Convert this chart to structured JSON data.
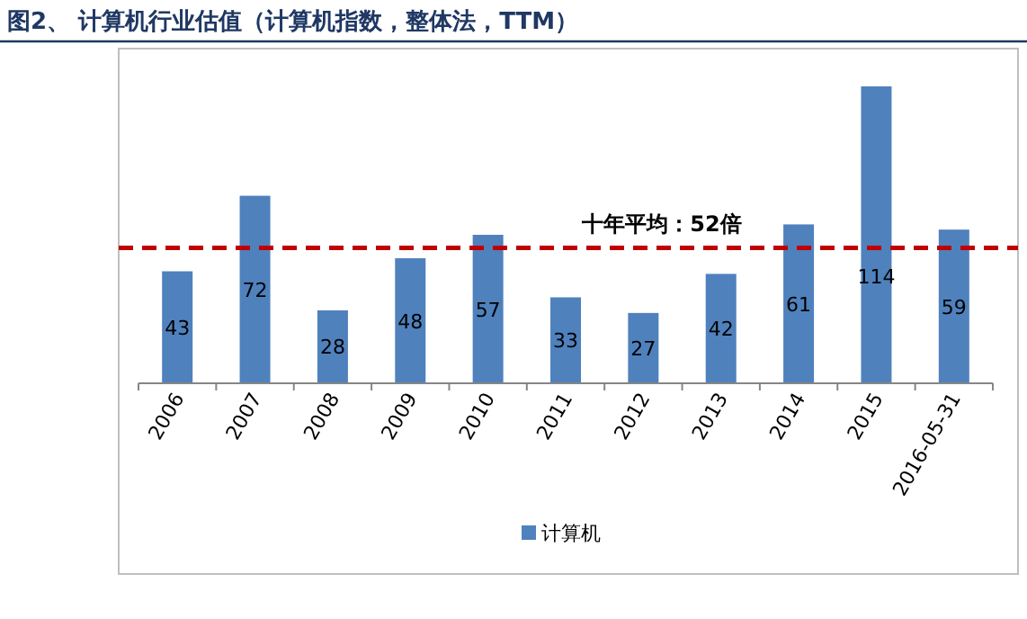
{
  "chart_data": {
    "type": "bar",
    "title": "图2、 计算机行业估值（计算机指数，整体法，TTM）",
    "categories": [
      "2006",
      "2007",
      "2008",
      "2009",
      "2010",
      "2011",
      "2012",
      "2013",
      "2014",
      "2015",
      "2016-05-31"
    ],
    "series": [
      {
        "name": "计算机",
        "color": "#4f81bd",
        "values": [
          43,
          72,
          28,
          48,
          57,
          33,
          27,
          42,
          61,
          114,
          59
        ]
      }
    ],
    "data_labels": true,
    "ref_lines": [
      {
        "axis": "y",
        "value": 52,
        "label": "十年平均：52倍",
        "color": "#c00000",
        "line_style": "dashed"
      }
    ],
    "legend": "bottom"
  }
}
